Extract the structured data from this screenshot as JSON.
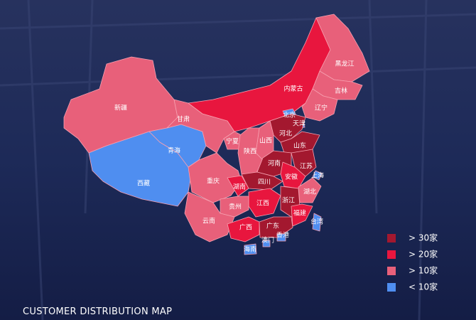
{
  "title": "CUSTOMER DISTRIBUTION MAP",
  "legend": [
    {
      "label": "> 30家",
      "color": "#a3182f"
    },
    {
      "label": "> 20家",
      "color": "#e8163e"
    },
    {
      "label": "> 10家",
      "color": "#e8607a"
    },
    {
      "label": "< 10家",
      "color": "#4f8ef0"
    }
  ],
  "regions": [
    {
      "name": "新疆",
      "tier": 2
    },
    {
      "name": "西藏",
      "tier": 3
    },
    {
      "name": "青海",
      "tier": 3
    },
    {
      "name": "甘肃",
      "tier": 2
    },
    {
      "name": "内蒙古",
      "tier": 1
    },
    {
      "name": "黑龙江",
      "tier": 2
    },
    {
      "name": "吉林",
      "tier": 2
    },
    {
      "name": "辽宁",
      "tier": 2
    },
    {
      "name": "北京",
      "tier": 3
    },
    {
      "name": "天津",
      "tier": 3
    },
    {
      "name": "河北",
      "tier": 0
    },
    {
      "name": "山西",
      "tier": 2
    },
    {
      "name": "宁夏",
      "tier": 2
    },
    {
      "name": "陕西",
      "tier": 2
    },
    {
      "name": "山东",
      "tier": 0
    },
    {
      "name": "河南",
      "tier": 0
    },
    {
      "name": "江苏",
      "tier": 0
    },
    {
      "name": "安徽",
      "tier": 1
    },
    {
      "name": "上海",
      "tier": 3
    },
    {
      "name": "湖北",
      "tier": 2
    },
    {
      "name": "四川",
      "tier": 0
    },
    {
      "name": "重庆",
      "tier": 2
    },
    {
      "name": "湖南",
      "tier": 1
    },
    {
      "name": "江西",
      "tier": 1
    },
    {
      "name": "浙江",
      "tier": 0
    },
    {
      "name": "贵州",
      "tier": 2
    },
    {
      "name": "云南",
      "tier": 2
    },
    {
      "name": "广西",
      "tier": 1
    },
    {
      "name": "广东",
      "tier": 0
    },
    {
      "name": "福建",
      "tier": 1
    },
    {
      "name": "台湾",
      "tier": 3
    },
    {
      "name": "香港",
      "tier": 3
    },
    {
      "name": "澳门",
      "tier": 3
    },
    {
      "name": "海南",
      "tier": 3
    }
  ]
}
